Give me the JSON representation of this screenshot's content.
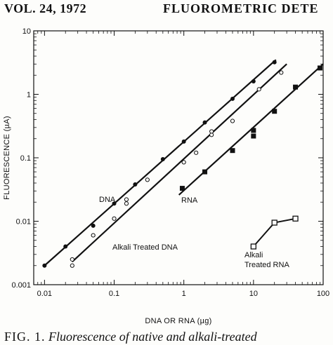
{
  "header": {
    "volume": "VOL. 24, 1972",
    "running_title": "FLUOROMETRIC DETE"
  },
  "caption": {
    "lead": "FIG. 1.",
    "text": "Fluorescence of native and alkali-treated"
  },
  "chart_data": {
    "type": "scatter",
    "xlabel": "DNA OR RNA (µg)",
    "ylabel": "FLUORESCENCE (µA)",
    "x_scale": "log",
    "y_scale": "log",
    "xlim": [
      0.007,
      100
    ],
    "ylim": [
      0.001,
      10
    ],
    "x_ticks": [
      {
        "value": 0.01,
        "label": "0.01"
      },
      {
        "value": 0.1,
        "label": "0.1"
      },
      {
        "value": 1,
        "label": "1"
      },
      {
        "value": 10,
        "label": "10"
      },
      {
        "value": 100,
        "label": "100"
      }
    ],
    "y_ticks": [
      {
        "value": 0.001,
        "label": "0.001"
      },
      {
        "value": 0.01,
        "label": "0.01"
      },
      {
        "value": 0.1,
        "label": "0.1"
      },
      {
        "value": 1,
        "label": "1"
      },
      {
        "value": 10,
        "label": "10"
      }
    ],
    "grid": false,
    "series": [
      {
        "name": "DNA",
        "marker": "filled-circle",
        "points": [
          [
            0.01,
            0.002
          ],
          [
            0.02,
            0.004
          ],
          [
            0.05,
            0.0085
          ],
          [
            0.1,
            0.019
          ],
          [
            0.2,
            0.038
          ],
          [
            0.5,
            0.095
          ],
          [
            1,
            0.18
          ],
          [
            2,
            0.36
          ],
          [
            5,
            0.85
          ],
          [
            10,
            1.6
          ],
          [
            20,
            3.2
          ]
        ],
        "fit": [
          [
            0.01,
            0.002
          ],
          [
            21,
            3.5
          ]
        ]
      },
      {
        "name": "Alkali Treated DNA",
        "marker": "open-circle",
        "points": [
          [
            0.025,
            0.002
          ],
          [
            0.025,
            0.0025
          ],
          [
            0.05,
            0.006
          ],
          [
            0.1,
            0.011
          ],
          [
            0.15,
            0.019
          ],
          [
            0.15,
            0.022
          ],
          [
            0.3,
            0.045
          ],
          [
            1,
            0.085
          ],
          [
            1.5,
            0.12
          ],
          [
            2.5,
            0.23
          ],
          [
            2.5,
            0.26
          ],
          [
            5,
            0.38
          ],
          [
            12,
            1.2
          ],
          [
            25,
            2.2
          ]
        ],
        "fit": [
          [
            0.025,
            0.0023
          ],
          [
            30,
            3.0
          ]
        ]
      },
      {
        "name": "RNA",
        "marker": "filled-square",
        "points": [
          [
            0.95,
            0.033
          ],
          [
            2,
            0.06
          ],
          [
            5,
            0.13
          ],
          [
            10,
            0.22
          ],
          [
            10,
            0.27
          ],
          [
            20,
            0.54
          ],
          [
            40,
            1.3
          ],
          [
            90,
            2.6
          ]
        ],
        "fit": [
          [
            0.85,
            0.026
          ],
          [
            100,
            3.0
          ]
        ]
      },
      {
        "name": "Alkali Treated RNA",
        "marker": "open-square",
        "points": [
          [
            10,
            0.004
          ],
          [
            20,
            0.0095
          ],
          [
            40,
            0.011
          ]
        ]
      }
    ],
    "annotations": [
      {
        "text": "DNA",
        "series": "DNA"
      },
      {
        "text": "RNA",
        "series": "RNA"
      },
      {
        "text": "Alkali Treated DNA",
        "series": "Alkali Treated DNA"
      },
      {
        "text": "Alkali",
        "series": "Alkali Treated RNA"
      },
      {
        "text": "Treated RNA",
        "series": "Alkali Treated RNA"
      }
    ]
  }
}
